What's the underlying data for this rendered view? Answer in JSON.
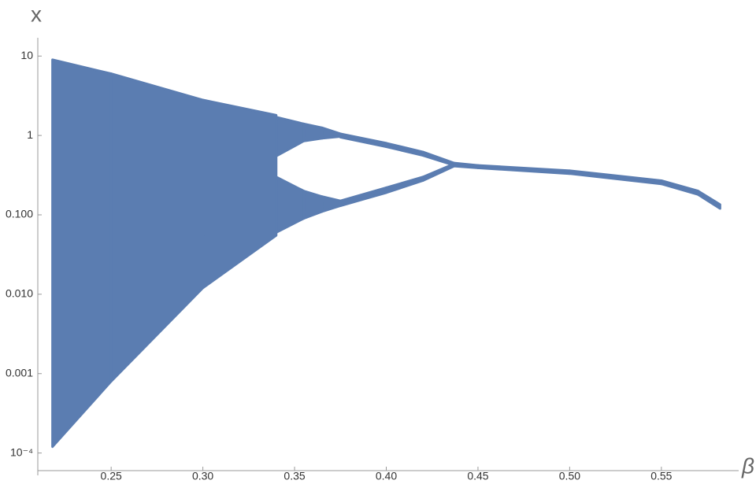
{
  "chart_data": {
    "type": "band",
    "x_label": "β",
    "y_label": "x",
    "color": "#5b7db1",
    "log_y": true,
    "grid": false,
    "xlim": [
      0.21,
      0.59
    ],
    "ylim": [
      6e-05,
      17
    ],
    "xticks": [
      0.25,
      {
        "value": 0.3,
        "label": "0.30"
      },
      0.35,
      {
        "value": 0.4,
        "label": "0.40"
      },
      0.45,
      {
        "value": 0.5,
        "label": "0.50"
      },
      0.55
    ],
    "yticks": [
      {
        "value": 0.0001,
        "label": "10⁻⁴"
      },
      {
        "value": 0.001,
        "label": "0.001"
      },
      {
        "value": 0.01,
        "label": "0.010"
      },
      {
        "value": 0.1,
        "label": "0.100"
      },
      1,
      10
    ],
    "series": [
      {
        "x": [
          0.218,
          0.25,
          0.3,
          0.34
        ],
        "upper": [
          9,
          6,
          2.8,
          1.8
        ],
        "lower": [
          0.00012,
          0.0008,
          0.012,
          0.055
        ]
      },
      {
        "x": [
          0.34,
          0.355,
          0.365,
          0.375
        ],
        "upper": [
          1.7,
          1.4,
          1.25,
          1.05
        ],
        "lower": [
          0.55,
          0.85,
          0.92,
          0.97
        ]
      },
      {
        "x": [
          0.34,
          0.355,
          0.365,
          0.375
        ],
        "upper": [
          0.3,
          0.2,
          0.17,
          0.15
        ],
        "lower": [
          0.06,
          0.09,
          0.11,
          0.13
        ]
      },
      {
        "x": [
          0.375,
          0.4,
          0.42,
          0.437
        ],
        "upper": [
          1.05,
          0.8,
          0.62,
          0.45
        ],
        "lower": [
          0.95,
          0.72,
          0.56,
          0.42
        ]
      },
      {
        "x": [
          0.375,
          0.4,
          0.42,
          0.437
        ],
        "upper": [
          0.15,
          0.22,
          0.3,
          0.44
        ],
        "lower": [
          0.13,
          0.19,
          0.27,
          0.41
        ]
      },
      {
        "x": [
          0.437,
          0.45,
          0.5,
          0.55,
          0.57,
          0.582
        ],
        "upper": [
          0.45,
          0.42,
          0.36,
          0.27,
          0.2,
          0.135
        ],
        "lower": [
          0.41,
          0.39,
          0.33,
          0.245,
          0.18,
          0.12
        ]
      }
    ]
  }
}
